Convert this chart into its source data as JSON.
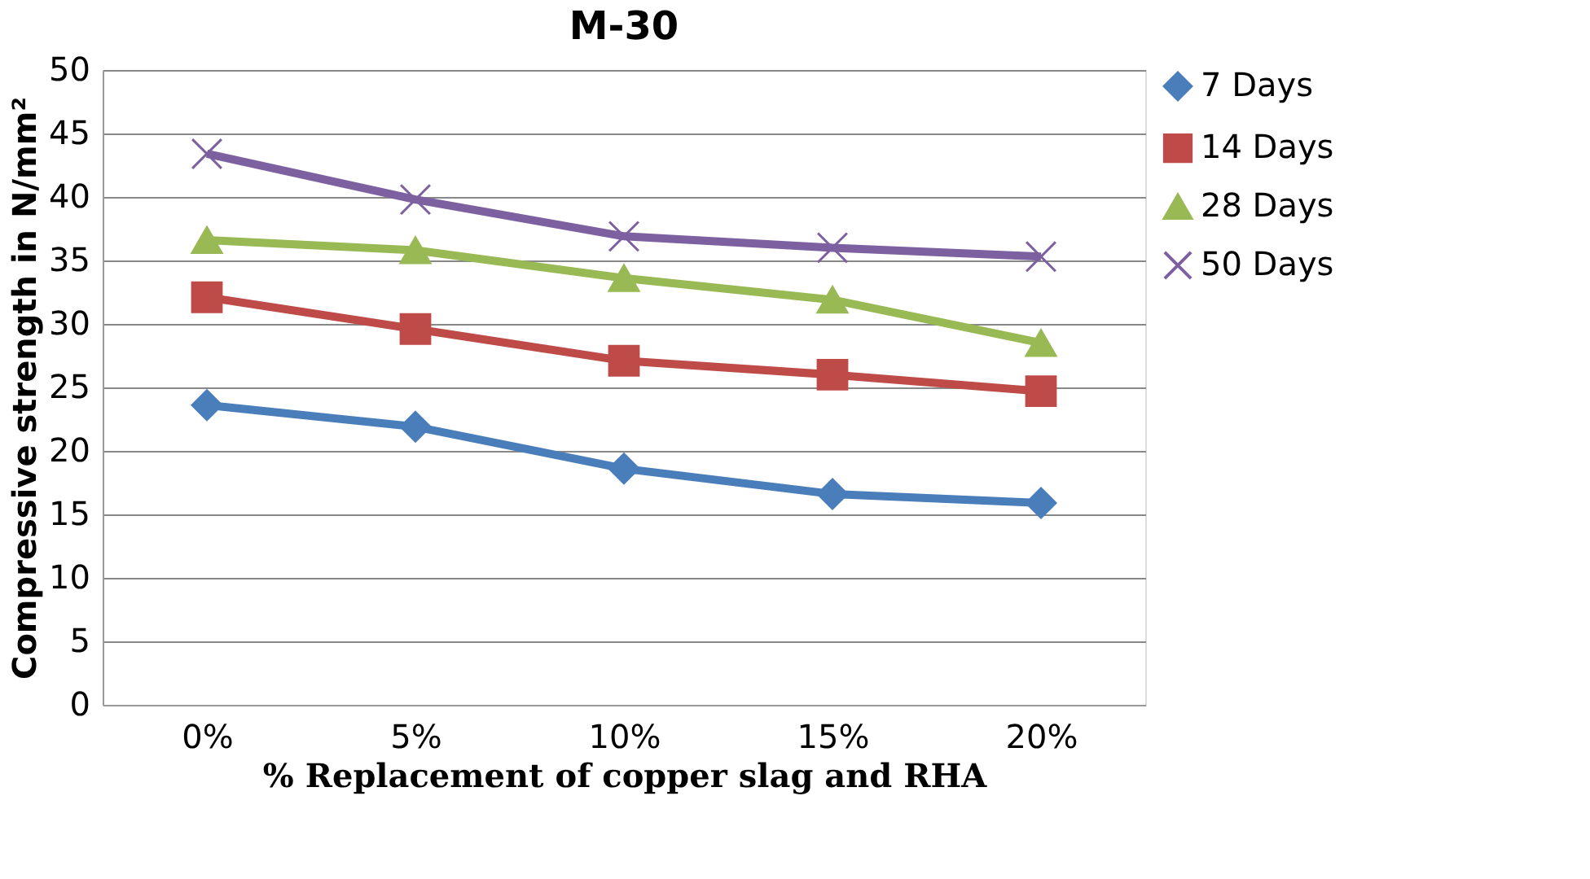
{
  "chart_data": {
    "type": "line",
    "title": "M-30",
    "xlabel": "% Replacement of copper slag and RHA",
    "ylabel": "Compressive strength in N/mm²",
    "categories": [
      "0%",
      "5%",
      "10%",
      "15%",
      "20%"
    ],
    "series": [
      {
        "name": "7 Days",
        "color": "#4a7ebb",
        "marker": "diamond",
        "values": [
          23.6,
          21.9,
          18.6,
          16.6,
          15.9
        ]
      },
      {
        "name": "14 Days",
        "color": "#be4b48",
        "marker": "square",
        "values": [
          32.1,
          29.6,
          27.1,
          26.0,
          24.7
        ]
      },
      {
        "name": "28 Days",
        "color": "#98b954",
        "marker": "triangle",
        "values": [
          36.6,
          35.8,
          33.6,
          31.9,
          28.5
        ]
      },
      {
        "name": "50 Days",
        "color": "#7d60a0",
        "marker": "cross",
        "values": [
          43.4,
          39.8,
          36.9,
          36.0,
          35.3
        ]
      }
    ],
    "ylim": [
      0,
      50
    ],
    "yticks": [
      0,
      5,
      10,
      15,
      20,
      25,
      30,
      35,
      40,
      45,
      50
    ],
    "grid": "y",
    "legend": "right"
  }
}
